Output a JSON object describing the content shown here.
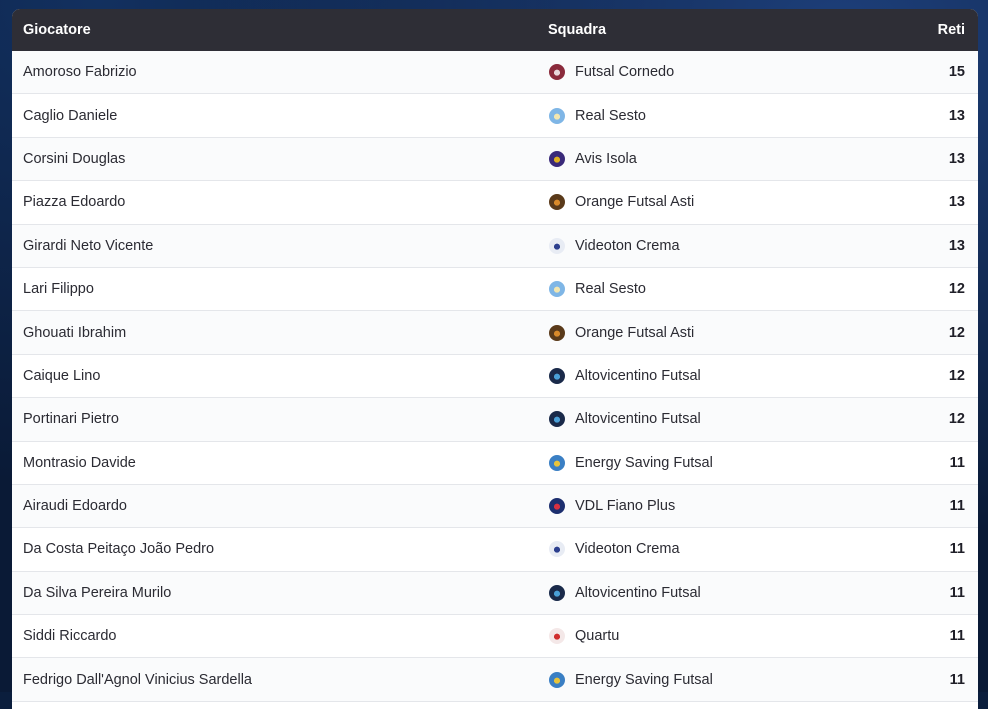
{
  "table": {
    "headers": {
      "player": "Giocatore",
      "team": "Squadra",
      "goals": "Reti"
    },
    "rows": [
      {
        "player": "Amoroso Fabrizio",
        "team": "Futsal Cornedo",
        "goals": "15",
        "crest": "futsal-cornedo-crest-icon",
        "crest_color": "#8a2b3c",
        "crest_color2": "#e9d8dc"
      },
      {
        "player": "Caglio Daniele",
        "team": "Real Sesto",
        "goals": "13",
        "crest": "real-sesto-crest-icon",
        "crest_color": "#7fb6e6",
        "crest_color2": "#f2e6b0"
      },
      {
        "player": "Corsini Douglas",
        "team": "Avis Isola",
        "goals": "13",
        "crest": "avis-isola-crest-icon",
        "crest_color": "#3a2a7a",
        "crest_color2": "#e0b020"
      },
      {
        "player": "Piazza Edoardo",
        "team": "Orange Futsal Asti",
        "goals": "13",
        "crest": "orange-futsal-asti-crest-icon",
        "crest_color": "#5a3a1a",
        "crest_color2": "#d8892a"
      },
      {
        "player": "Girardi Neto Vicente",
        "team": "Videoton Crema",
        "goals": "13",
        "crest": "videoton-crema-crest-icon",
        "crest_color": "#e8ecf4",
        "crest_color2": "#2c3f8e"
      },
      {
        "player": "Lari Filippo",
        "team": "Real Sesto",
        "goals": "12",
        "crest": "real-sesto-crest-icon",
        "crest_color": "#7fb6e6",
        "crest_color2": "#f2e6b0"
      },
      {
        "player": "Ghouati Ibrahim",
        "team": "Orange Futsal Asti",
        "goals": "12",
        "crest": "orange-futsal-asti-crest-icon",
        "crest_color": "#5a3a1a",
        "crest_color2": "#d8892a"
      },
      {
        "player": "Caique Lino",
        "team": "Altovicentino Futsal",
        "goals": "12",
        "crest": "altovicentino-futsal-crest-icon",
        "crest_color": "#1a2a4a",
        "crest_color2": "#4aa0d8"
      },
      {
        "player": "Portinari Pietro",
        "team": "Altovicentino Futsal",
        "goals": "12",
        "crest": "altovicentino-futsal-crest-icon",
        "crest_color": "#1a2a4a",
        "crest_color2": "#4aa0d8"
      },
      {
        "player": "Montrasio Davide",
        "team": "Energy Saving Futsal",
        "goals": "11",
        "crest": "energy-saving-futsal-crest-icon",
        "crest_color": "#3a7fc4",
        "crest_color2": "#e8c43a"
      },
      {
        "player": "Airaudi Edoardo",
        "team": "VDL Fiano Plus",
        "goals": "11",
        "crest": "vdl-fiano-plus-crest-icon",
        "crest_color": "#1d2f6f",
        "crest_color2": "#d83040"
      },
      {
        "player": "Da Costa Peitaço João Pedro",
        "team": "Videoton Crema",
        "goals": "11",
        "crest": "videoton-crema-crest-icon",
        "crest_color": "#e8ecf4",
        "crest_color2": "#2c3f8e"
      },
      {
        "player": "Da Silva Pereira Murilo",
        "team": "Altovicentino Futsal",
        "goals": "11",
        "crest": "altovicentino-futsal-crest-icon",
        "crest_color": "#1a2a4a",
        "crest_color2": "#4aa0d8"
      },
      {
        "player": "Siddi Riccardo",
        "team": "Quartu",
        "goals": "11",
        "crest": "quartu-crest-icon",
        "crest_color": "#f4e8e8",
        "crest_color2": "#d03030"
      },
      {
        "player": "Fedrigo Dall'Agnol Vinicius Sardella",
        "team": "Energy Saving Futsal",
        "goals": "11",
        "crest": "energy-saving-futsal-crest-icon",
        "crest_color": "#3a7fc4",
        "crest_color2": "#e8c43a"
      }
    ]
  }
}
